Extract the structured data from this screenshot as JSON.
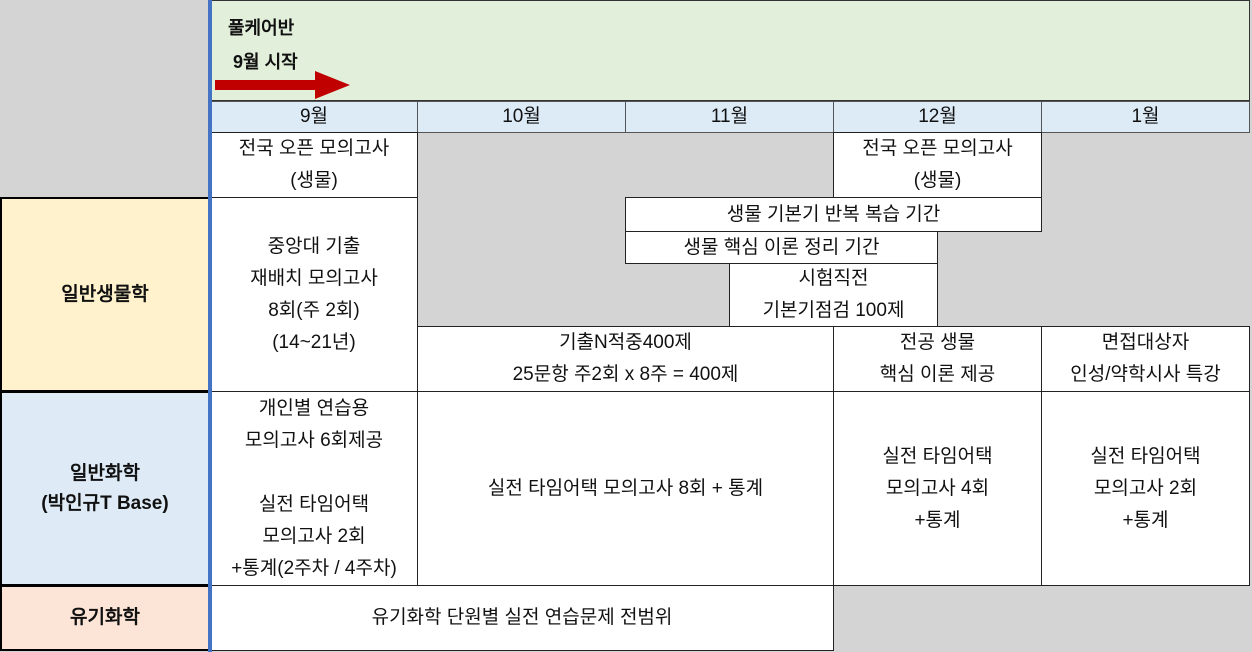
{
  "header": {
    "title": "풀케어반",
    "subtitle": "9월 시작",
    "arrow_color": "#c00000"
  },
  "months": [
    "9월",
    "10월",
    "11월",
    "12월",
    "1월"
  ],
  "mock_exam": {
    "sep": "전국 오픈 모의고사\n(생물)",
    "dec": "전국 오픈 모의고사\n(생물)"
  },
  "biology": {
    "label": "일반생물학",
    "color": "#fff2cc",
    "sep": "중앙대 기출\n재배치 모의고사\n8회(주 2회)\n(14~21년)",
    "review": "생물 기본기 반복 복습 기간",
    "theory": "생물 핵심 이론 정리 기간",
    "final": "시험직전\n기본기점검 100제",
    "past": "기출N적중400제\n25문항 주2회 x 8주 = 400제",
    "major": "전공 생물\n핵심 이론 제공",
    "interview": "면접대상자\n인성/약학시사 특강"
  },
  "chemistry": {
    "label": "일반화학\n(박인규T Base)",
    "color": "#deebf7",
    "sep": "개인별 연습용\n모의고사 6회제공\n\n실전 타임어택\n모의고사 2회\n+통계(2주차 / 4주차)",
    "oct_nov": "실전 타임어택 모의고사 8회 + 통계",
    "dec": "실전 타임어택\n모의고사 4회\n+통계",
    "jan": "실전 타임어택\n모의고사 2회\n+통계"
  },
  "organic": {
    "label": "유기화학",
    "color": "#fce4d6",
    "content": "유기화학 단원별 실전 연습문제 전범위"
  }
}
